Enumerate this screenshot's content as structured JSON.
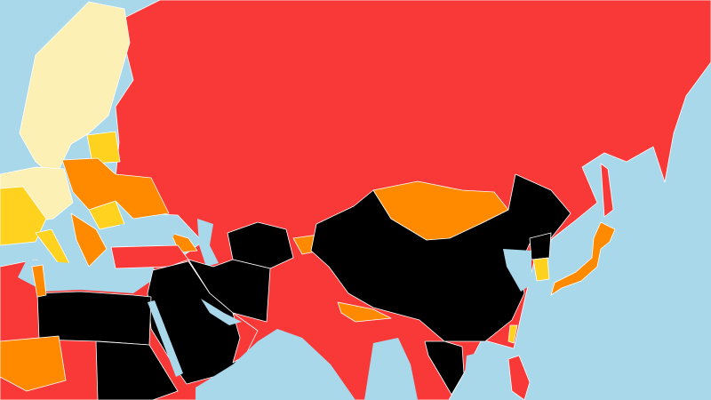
{
  "map": {
    "colors": {
      "ocean": "#a8d8ea",
      "good": "#fdf0b4",
      "satisfactory": "#ffd21f",
      "problematic": "#ff8a00",
      "difficult": "#f93838",
      "very_serious": "#000000"
    }
  }
}
